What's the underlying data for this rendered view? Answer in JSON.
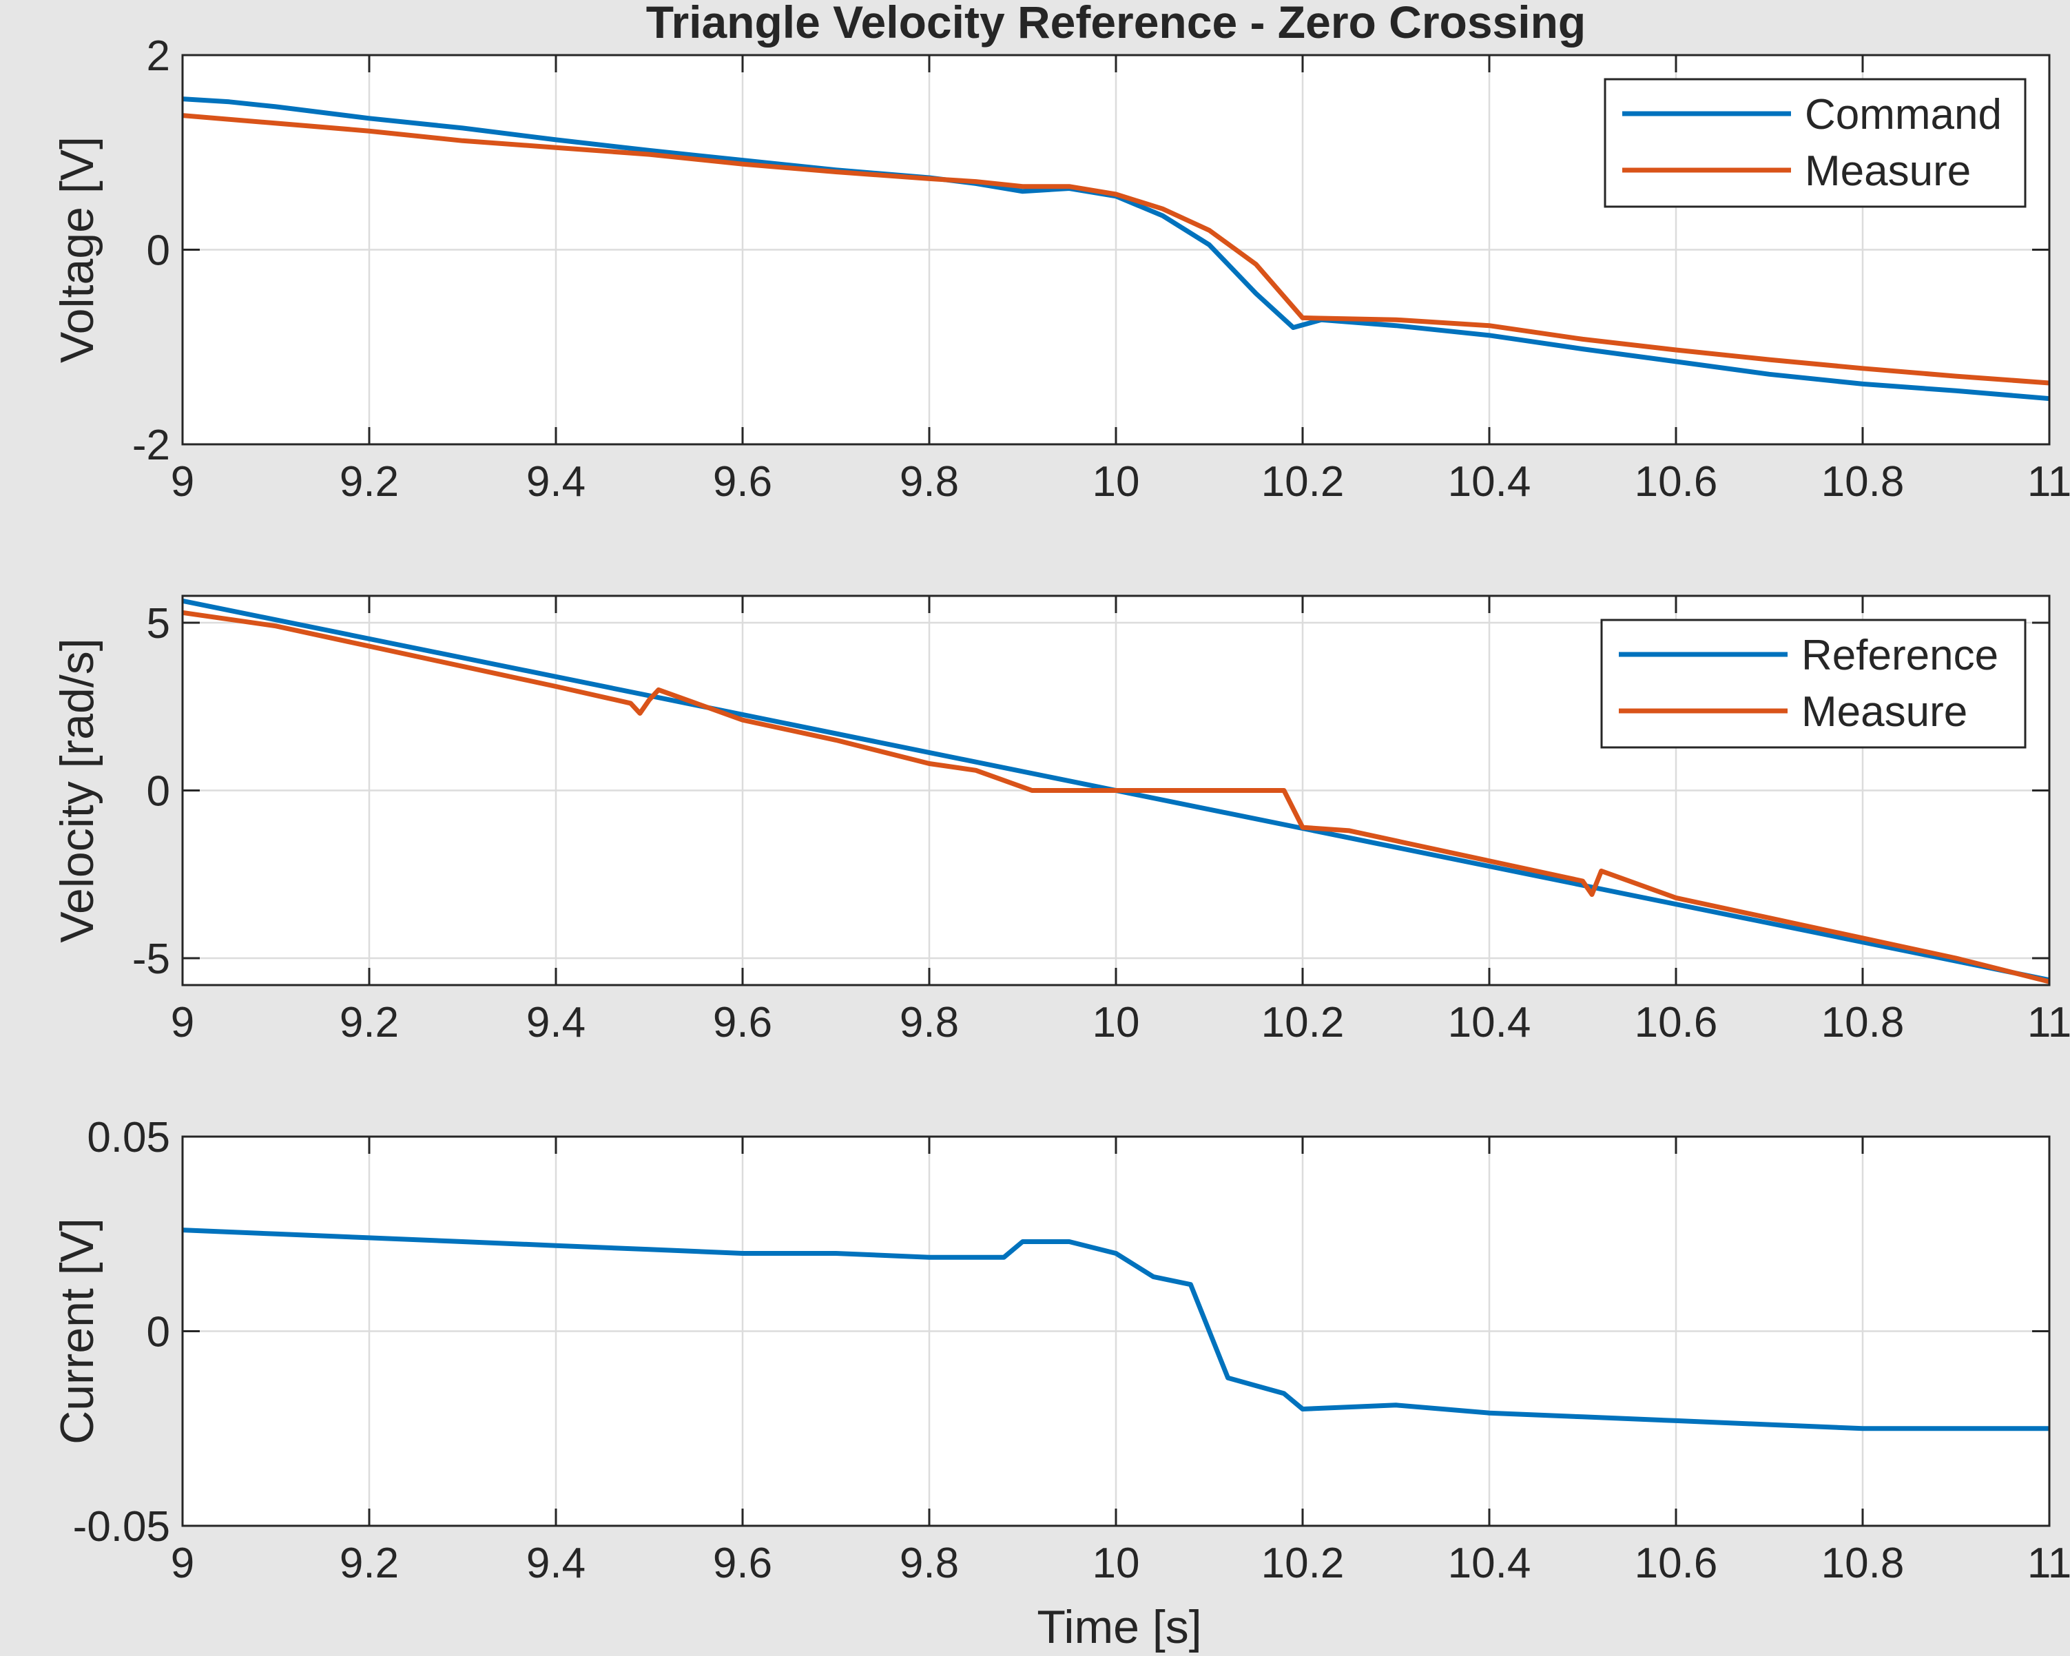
{
  "figure": {
    "title": "Triangle Velocity Reference - Zero Crossing",
    "xlabel": "Time [s]"
  },
  "chart_data": [
    {
      "type": "line",
      "title": "Triangle Velocity Reference - Zero Crossing",
      "xlabel": "",
      "ylabel": "Voltage [V]",
      "xlim": [
        9,
        11
      ],
      "ylim": [
        -2,
        2
      ],
      "xticks": [
        9,
        9.2,
        9.4,
        9.6,
        9.8,
        10,
        10.2,
        10.4,
        10.6,
        10.8,
        11
      ],
      "xtick_labels": [
        "9",
        "9.2",
        "9.4",
        "9.6",
        "9.8",
        "10",
        "10.2",
        "10.4",
        "10.6",
        "10.8",
        "11"
      ],
      "yticks": [
        -2,
        0,
        2
      ],
      "ytick_labels": [
        "-2",
        "0",
        "2"
      ],
      "grid": true,
      "legend": "top-right",
      "series": [
        {
          "name": "Command",
          "color": "#0072bd",
          "x": [
            9.0,
            9.05,
            9.1,
            9.2,
            9.3,
            9.4,
            9.5,
            9.6,
            9.7,
            9.8,
            9.85,
            9.9,
            9.95,
            10.0,
            10.05,
            10.1,
            10.15,
            10.19,
            10.22,
            10.3,
            10.4,
            10.5,
            10.6,
            10.7,
            10.8,
            10.9,
            11.0
          ],
          "y": [
            1.55,
            1.52,
            1.47,
            1.35,
            1.25,
            1.13,
            1.02,
            0.92,
            0.82,
            0.74,
            0.68,
            0.6,
            0.63,
            0.55,
            0.35,
            0.05,
            -0.45,
            -0.8,
            -0.72,
            -0.78,
            -0.88,
            -1.02,
            -1.15,
            -1.28,
            -1.38,
            -1.45,
            -1.53
          ]
        },
        {
          "name": "Measure",
          "color": "#d95319",
          "x": [
            9.0,
            9.1,
            9.2,
            9.3,
            9.4,
            9.5,
            9.6,
            9.7,
            9.8,
            9.85,
            9.9,
            9.95,
            10.0,
            10.05,
            10.1,
            10.15,
            10.2,
            10.3,
            10.4,
            10.5,
            10.6,
            10.7,
            10.8,
            10.9,
            11.0
          ],
          "y": [
            1.38,
            1.3,
            1.22,
            1.12,
            1.05,
            0.98,
            0.88,
            0.8,
            0.73,
            0.7,
            0.65,
            0.65,
            0.57,
            0.42,
            0.2,
            -0.15,
            -0.7,
            -0.72,
            -0.78,
            -0.92,
            -1.03,
            -1.13,
            -1.22,
            -1.3,
            -1.37
          ]
        }
      ]
    },
    {
      "type": "line",
      "title": "",
      "xlabel": "",
      "ylabel": "Velocity [rad/s]",
      "xlim": [
        9,
        11
      ],
      "ylim": [
        -5.8,
        5.8
      ],
      "xticks": [
        9,
        9.2,
        9.4,
        9.6,
        9.8,
        10,
        10.2,
        10.4,
        10.6,
        10.8,
        11
      ],
      "xtick_labels": [
        "9",
        "9.2",
        "9.4",
        "9.6",
        "9.8",
        "10",
        "10.2",
        "10.4",
        "10.6",
        "10.8",
        "11"
      ],
      "yticks": [
        -5,
        0,
        5
      ],
      "ytick_labels": [
        "-5",
        "0",
        "5"
      ],
      "grid": true,
      "legend": "top-right",
      "series": [
        {
          "name": "Reference",
          "color": "#0072bd",
          "x": [
            9.0,
            11.0
          ],
          "y": [
            5.65,
            -5.65
          ]
        },
        {
          "name": "Measure",
          "color": "#d95319",
          "x": [
            9.0,
            9.1,
            9.2,
            9.3,
            9.4,
            9.48,
            9.49,
            9.5,
            9.51,
            9.6,
            9.7,
            9.8,
            9.85,
            9.91,
            10.0,
            10.1,
            10.18,
            10.2,
            10.25,
            10.3,
            10.4,
            10.5,
            10.51,
            10.52,
            10.6,
            10.7,
            10.8,
            10.9,
            11.0
          ],
          "y": [
            5.3,
            4.9,
            4.3,
            3.7,
            3.1,
            2.6,
            2.3,
            2.7,
            3.0,
            2.1,
            1.5,
            0.8,
            0.6,
            0.0,
            0.0,
            0.0,
            0.0,
            -1.1,
            -1.2,
            -1.5,
            -2.1,
            -2.7,
            -3.1,
            -2.4,
            -3.2,
            -3.8,
            -4.4,
            -5.0,
            -5.7
          ]
        }
      ]
    },
    {
      "type": "line",
      "title": "",
      "xlabel": "Time [s]",
      "ylabel": "Current [V]",
      "xlim": [
        9,
        11
      ],
      "ylim": [
        -0.05,
        0.05
      ],
      "xticks": [
        9,
        9.2,
        9.4,
        9.6,
        9.8,
        10,
        10.2,
        10.4,
        10.6,
        10.8,
        11
      ],
      "xtick_labels": [
        "9",
        "9.2",
        "9.4",
        "9.6",
        "9.8",
        "10",
        "10.2",
        "10.4",
        "10.6",
        "10.8",
        "11"
      ],
      "yticks": [
        -0.05,
        0,
        0.05
      ],
      "ytick_labels": [
        "-0.05",
        "0",
        "0.05"
      ],
      "grid": true,
      "legend": "none",
      "series": [
        {
          "color": "#0072bd",
          "x": [
            9.0,
            9.1,
            9.2,
            9.3,
            9.4,
            9.5,
            9.6,
            9.7,
            9.8,
            9.88,
            9.9,
            9.95,
            10.0,
            10.04,
            10.08,
            10.1,
            10.12,
            10.15,
            10.18,
            10.2,
            10.3,
            10.4,
            10.5,
            10.6,
            10.7,
            10.8,
            10.9,
            11.0
          ],
          "y": [
            0.026,
            0.025,
            0.024,
            0.023,
            0.022,
            0.021,
            0.02,
            0.02,
            0.019,
            0.019,
            0.023,
            0.023,
            0.02,
            0.014,
            0.012,
            0.0,
            -0.012,
            -0.014,
            -0.016,
            -0.02,
            -0.019,
            -0.021,
            -0.022,
            -0.023,
            -0.024,
            -0.025,
            -0.025,
            -0.025
          ]
        }
      ]
    }
  ]
}
